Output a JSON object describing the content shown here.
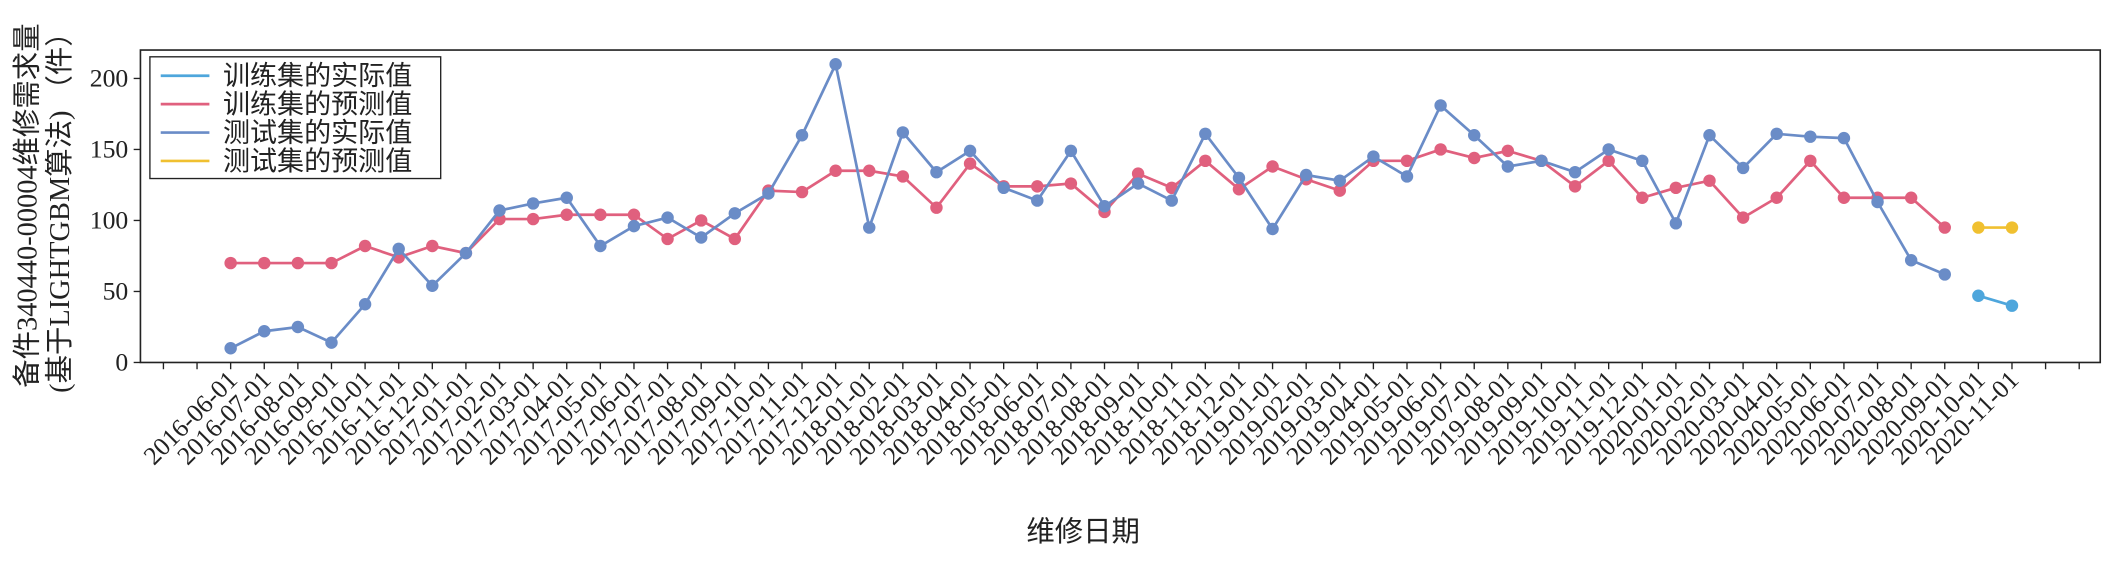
{
  "chart_data": {
    "type": "line",
    "xlabel": "维修日期",
    "ylabel": [
      "备件340440-00004维修需求量",
      "(基于LIGHTGBM算法) （件）"
    ],
    "categories": [
      null,
      null,
      "2016-06-01",
      "2016-07-01",
      "2016-08-01",
      "2016-09-01",
      "2016-10-01",
      "2016-11-01",
      "2016-12-01",
      "2017-01-01",
      "2017-02-01",
      "2017-03-01",
      "2017-04-01",
      "2017-05-01",
      "2017-06-01",
      "2017-07-01",
      "2017-08-01",
      "2017-09-01",
      "2017-10-01",
      "2017-11-01",
      "2017-12-01",
      "2018-01-01",
      "2018-02-01",
      "2018-03-01",
      "2018-04-01",
      "2018-05-01",
      "2018-06-01",
      "2018-07-01",
      "2018-08-01",
      "2018-09-01",
      "2018-10-01",
      "2018-11-01",
      "2018-12-01",
      "2019-01-01",
      "2019-02-01",
      "2019-03-01",
      "2019-04-01",
      "2019-05-01",
      "2019-06-01",
      "2019-07-01",
      "2019-08-01",
      "2019-09-01",
      "2019-10-01",
      "2019-11-01",
      "2019-12-01",
      "2020-01-01",
      "2020-02-01",
      "2020-03-01",
      "2020-04-01",
      "2020-05-01",
      "2020-06-01",
      "2020-07-01",
      "2020-08-01",
      "2020-09-01",
      "2020-10-01",
      "2020-11-01",
      null,
      null
    ],
    "series": [
      {
        "name": "训练集的实际值",
        "color": "#4ea6dc",
        "values": [
          null,
          null,
          null,
          null,
          null,
          null,
          null,
          null,
          null,
          null,
          null,
          null,
          null,
          null,
          null,
          null,
          null,
          null,
          null,
          null,
          null,
          null,
          null,
          null,
          null,
          null,
          null,
          null,
          null,
          null,
          null,
          null,
          null,
          null,
          null,
          null,
          null,
          null,
          null,
          null,
          null,
          null,
          null,
          null,
          null,
          null,
          null,
          null,
          null,
          null,
          null,
          null,
          null,
          null,
          47,
          40,
          null,
          null
        ]
      },
      {
        "name": "训练集的预测值",
        "color": "#e0607e",
        "values": [
          null,
          null,
          70,
          70,
          70,
          70,
          82,
          74,
          82,
          77,
          101,
          101,
          104,
          104,
          104,
          87,
          100,
          87,
          121,
          120,
          135,
          135,
          131,
          109,
          140,
          124,
          124,
          126,
          106,
          133,
          123,
          142,
          122,
          138,
          129,
          121,
          142,
          142,
          150,
          144,
          149,
          142,
          124,
          142,
          116,
          123,
          128,
          102,
          116,
          142,
          116,
          116,
          116,
          95,
          null,
          null,
          null,
          null
        ]
      },
      {
        "name": "测试集的实际值",
        "color": "#6a8cc7",
        "values": [
          null,
          null,
          10,
          22,
          25,
          14,
          41,
          80,
          54,
          77,
          107,
          112,
          116,
          82,
          96,
          102,
          88,
          105,
          119,
          160,
          210,
          95,
          162,
          134,
          149,
          123,
          114,
          149,
          110,
          126,
          114,
          161,
          130,
          94,
          132,
          128,
          145,
          131,
          181,
          160,
          138,
          142,
          134,
          150,
          142,
          98,
          160,
          137,
          161,
          159,
          158,
          113,
          72,
          62,
          null,
          null,
          null,
          null
        ]
      },
      {
        "name": "测试集的预测值",
        "color": "#f0c030",
        "values": [
          null,
          null,
          null,
          null,
          null,
          null,
          null,
          null,
          null,
          null,
          null,
          null,
          null,
          null,
          null,
          null,
          null,
          null,
          null,
          null,
          null,
          null,
          null,
          null,
          null,
          null,
          null,
          null,
          null,
          null,
          null,
          null,
          null,
          null,
          null,
          null,
          null,
          null,
          null,
          null,
          null,
          null,
          null,
          null,
          null,
          null,
          null,
          null,
          null,
          null,
          null,
          null,
          null,
          null,
          95,
          95,
          null,
          null
        ]
      }
    ],
    "ylim": [
      0,
      220
    ],
    "yticks": [
      0,
      50,
      100,
      150,
      200
    ],
    "grid": false,
    "legend": "upper left"
  }
}
